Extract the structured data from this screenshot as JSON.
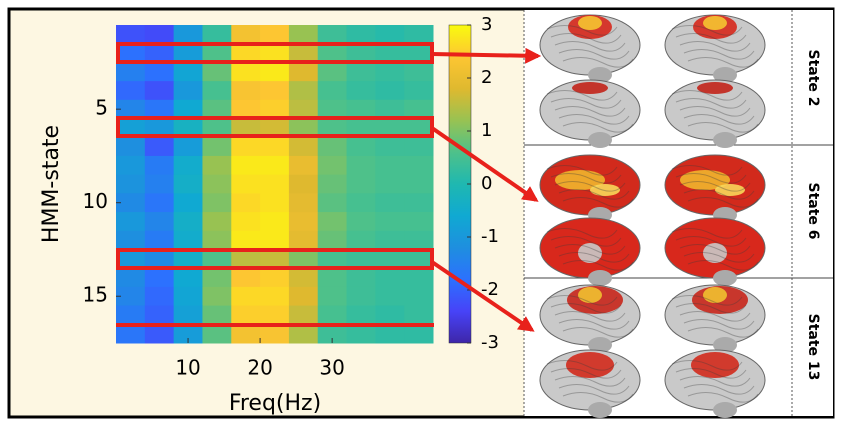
{
  "chart_data": {
    "type": "heatmap",
    "xlabel": "Freq(Hz)",
    "ylabel": "HMM-state",
    "x": [
      2,
      6,
      10,
      14,
      18,
      22,
      26,
      30,
      34,
      38,
      42
    ],
    "y": [
      1,
      2,
      3,
      4,
      5,
      6,
      7,
      8,
      9,
      10,
      11,
      12,
      13,
      14,
      15,
      16,
      17
    ],
    "z": [
      [
        -2.2,
        -2.3,
        -1,
        0.3,
        2.2,
        2.4,
        1.2,
        0.4,
        0.2,
        0.1,
        0.2
      ],
      [
        -1.8,
        -2,
        -0.9,
        0.6,
        2.6,
        2.7,
        1.6,
        0.6,
        0.4,
        0.3,
        0.3
      ],
      [
        -1.5,
        -1.8,
        -0.7,
        0.8,
        2.7,
        2.8,
        1.8,
        0.7,
        0.4,
        0.3,
        0.4
      ],
      [
        -1.9,
        -2.2,
        -1,
        0.5,
        2.3,
        2.4,
        1.4,
        0.5,
        0.3,
        0.2,
        0.3
      ],
      [
        -1.4,
        -1.7,
        -0.6,
        0.7,
        2.4,
        2.5,
        1.5,
        0.6,
        0.5,
        0.4,
        0.5
      ],
      [
        -0.8,
        -1,
        -0.3,
        0.6,
        1.6,
        1.7,
        1.1,
        0.6,
        0.5,
        0.5,
        0.5
      ],
      [
        -1.2,
        -2.1,
        -0.9,
        0.9,
        2.6,
        2.6,
        1.7,
        0.8,
        0.5,
        0.4,
        0.4
      ],
      [
        -1,
        -1.6,
        -0.5,
        1.2,
        2.8,
        2.8,
        2,
        0.9,
        0.6,
        0.5,
        0.5
      ],
      [
        -1.1,
        -1.5,
        -0.4,
        1.1,
        2.7,
        2.7,
        1.8,
        0.8,
        0.6,
        0.5,
        0.5
      ],
      [
        -1.3,
        -1.7,
        -0.6,
        1,
        2.6,
        2.7,
        1.9,
        0.7,
        0.5,
        0.4,
        0.4
      ],
      [
        -1,
        -1.4,
        -0.4,
        1.2,
        2.7,
        2.8,
        2,
        0.9,
        0.6,
        0.5,
        0.5
      ],
      [
        -1.2,
        -1.6,
        -0.5,
        1.1,
        2.8,
        2.8,
        1.9,
        0.8,
        0.5,
        0.4,
        0.4
      ],
      [
        -1,
        -1.3,
        -0.4,
        0.6,
        1.5,
        1.6,
        1,
        0.5,
        0.4,
        0.4,
        0.4
      ],
      [
        -1.3,
        -1.8,
        -0.6,
        0.9,
        2.4,
        2.5,
        1.7,
        0.6,
        0.4,
        0.3,
        0.3
      ],
      [
        -1.4,
        -1.9,
        -0.7,
        1,
        2.6,
        2.6,
        1.8,
        0.6,
        0.4,
        0.3,
        0.3
      ],
      [
        -1.6,
        -2,
        -0.8,
        0.8,
        2.5,
        2.5,
        1.6,
        0.5,
        0.3,
        0.2,
        0.3
      ],
      [
        -1.7,
        -2.1,
        -0.9,
        0.7,
        2.2,
        2.3,
        1.4,
        0.4,
        0.3,
        0.2,
        0.2
      ]
    ],
    "xlim": [
      0,
      44
    ],
    "xticks": [
      10,
      20,
      30
    ],
    "ylim": [
      0.5,
      17.5
    ],
    "yticks": [
      5,
      10,
      15
    ],
    "clim": [
      -3,
      3
    ],
    "cticks": [
      -3,
      -2,
      -1,
      0,
      1,
      2,
      3
    ],
    "colormap": "parula",
    "annotations": [
      "State 2",
      "State 6",
      "State 13"
    ]
  }
}
